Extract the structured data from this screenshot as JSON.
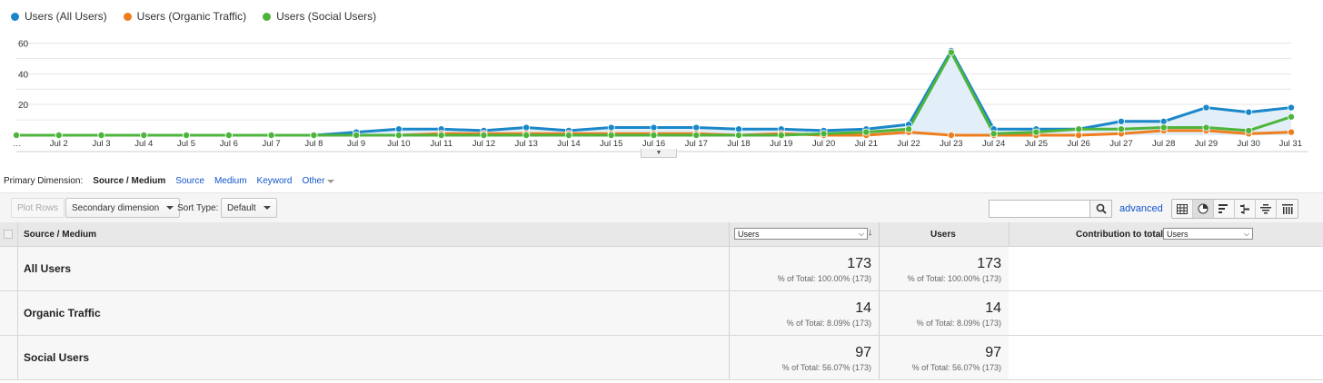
{
  "legend": [
    {
      "label": "Users (All Users)",
      "color": "#1a87c9"
    },
    {
      "label": "Users (Organic Traffic)",
      "color": "#ee7d1c"
    },
    {
      "label": "Users (Social Users)",
      "color": "#4db43c"
    }
  ],
  "chart_data": {
    "type": "line",
    "x": [
      "…",
      "Jul 2",
      "Jul 3",
      "Jul 4",
      "Jul 5",
      "Jul 6",
      "Jul 7",
      "Jul 8",
      "Jul 9",
      "Jul 10",
      "Jul 11",
      "Jul 12",
      "Jul 13",
      "Jul 14",
      "Jul 15",
      "Jul 16",
      "Jul 17",
      "Jul 18",
      "Jul 19",
      "Jul 20",
      "Jul 21",
      "Jul 22",
      "Jul 23",
      "Jul 24",
      "Jul 25",
      "Jul 26",
      "Jul 27",
      "Jul 28",
      "Jul 29",
      "Jul 30",
      "Jul 31"
    ],
    "y_ticks": [
      "20",
      "40",
      "60"
    ],
    "ylim": [
      0,
      68
    ],
    "grid": true,
    "legend_position": "top-left",
    "series": [
      {
        "name": "Users (All Users)",
        "color": "#1a87c9",
        "area": true,
        "values": [
          0,
          0,
          0,
          0,
          0,
          0,
          0,
          0,
          2,
          4,
          4,
          3,
          5,
          3,
          5,
          5,
          5,
          4,
          4,
          3,
          4,
          7,
          55,
          4,
          4,
          4,
          9,
          9,
          18,
          15,
          18
        ]
      },
      {
        "name": "Users (Organic Traffic)",
        "color": "#ee7d1c",
        "values": [
          0,
          0,
          0,
          0,
          0,
          0,
          0,
          0,
          0,
          0,
          1,
          1,
          1,
          1,
          1,
          1,
          1,
          0,
          1,
          0,
          0,
          2,
          0,
          0,
          0,
          0,
          1,
          3,
          3,
          1,
          2
        ]
      },
      {
        "name": "Users (Social Users)",
        "color": "#4db43c",
        "values": [
          0,
          0,
          0,
          0,
          0,
          0,
          0,
          0,
          0,
          0,
          0,
          0,
          0,
          0,
          0,
          0,
          0,
          0,
          0,
          1,
          2,
          4,
          54,
          1,
          2,
          4,
          4,
          5,
          5,
          3,
          12
        ]
      }
    ]
  },
  "primary_dimension": {
    "label": "Primary Dimension:",
    "current": "Source / Medium",
    "links": [
      "Source",
      "Medium",
      "Keyword"
    ],
    "other": "Other"
  },
  "toolbar": {
    "plot_rows": "Plot Rows",
    "secondary_dimension": "Secondary dimension",
    "sort_type_label": "Sort Type:",
    "sort_type_value": "Default",
    "search_value": "",
    "advanced": "advanced"
  },
  "table": {
    "col_source": "Source / Medium",
    "metric_select": "Users",
    "col_users": "Users",
    "contribution_label": "Contribution to total:",
    "contribution_select": "Users",
    "rows": [
      {
        "label": "All Users",
        "v1": "173",
        "p1": "% of Total: 100.00% (173)",
        "v2": "173",
        "p2": "% of Total: 100.00% (173)"
      },
      {
        "label": "Organic Traffic",
        "v1": "14",
        "p1": "% of Total: 8.09% (173)",
        "v2": "14",
        "p2": "% of Total: 8.09% (173)"
      },
      {
        "label": "Social Users",
        "v1": "97",
        "p1": "% of Total: 56.07% (173)",
        "v2": "97",
        "p2": "% of Total: 56.07% (173)"
      }
    ]
  }
}
